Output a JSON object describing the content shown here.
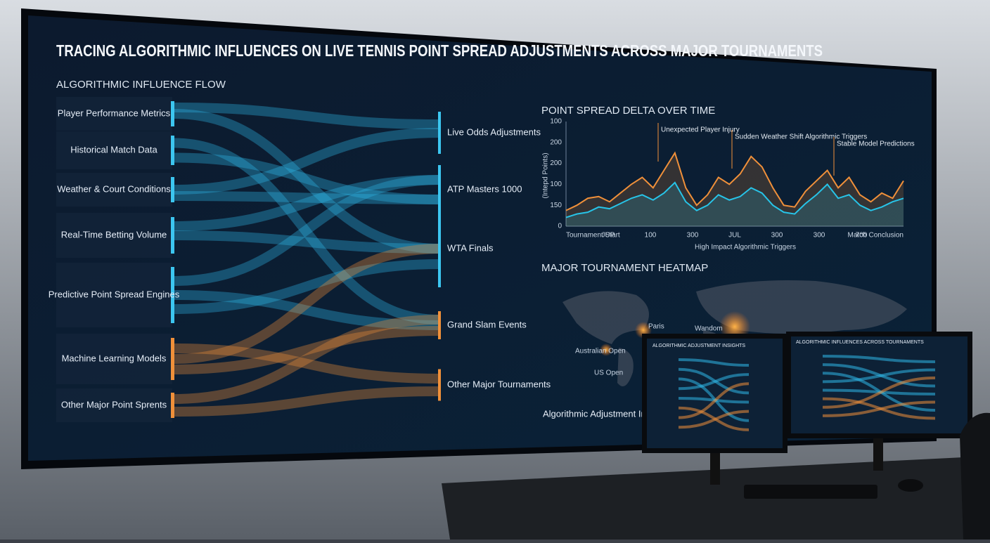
{
  "header": {
    "title": "TRACING ALGORITHMIC INFLUENCES ON LIVE TENNIS POINT SPREAD ADJUSTMENTS ACROSS MAJOR TOURNAMENTS"
  },
  "flow": {
    "title": "ALGORITHMIC INFLUENCE FLOW",
    "sources": [
      "Player Performance Metrics",
      "Historical Match Data",
      "Weather & Court Conditions",
      "Real-Time Betting Volume",
      "Predictive Point Spread Engines",
      "Machine Learning Models",
      "Other Major Point Sprents"
    ],
    "targets": [
      "Live Odds Adjustments",
      "ATP Masters 1000",
      "WTA Finals",
      "Grand Slam Events",
      "Other Major Tournaments"
    ]
  },
  "chart_data": {
    "type": "line",
    "title": "POINT SPREAD DELTA OVER TIME",
    "y_label": "(Intepd Points)",
    "y_axis_labels": [
      "100",
      "200",
      "200",
      "100",
      "150",
      "0"
    ],
    "x_axis_labels": [
      "Tournament Start",
      "JUP",
      "100",
      "300",
      "JUL",
      "300",
      "300",
      "700",
      "Match Conclusion"
    ],
    "x_label": "High Impact Algorithmic Triggers",
    "ylim": [
      0,
      300
    ],
    "annotations": [
      "Unexpected Player Injury",
      "Sudden Weather Shift Algorithmic Triggers",
      "Stable Model Predictions"
    ],
    "series": [
      {
        "color": "#f0903a",
        "values": [
          45,
          60,
          80,
          85,
          70,
          95,
          120,
          140,
          110,
          160,
          210,
          110,
          60,
          90,
          140,
          120,
          150,
          200,
          170,
          110,
          60,
          55,
          100,
          130,
          160,
          110,
          140,
          90,
          70,
          95,
          80,
          130
        ]
      },
      {
        "color": "#27c4e8",
        "values": [
          25,
          35,
          40,
          55,
          50,
          65,
          80,
          90,
          75,
          95,
          125,
          70,
          45,
          60,
          90,
          75,
          85,
          110,
          95,
          60,
          40,
          35,
          65,
          90,
          120,
          80,
          90,
          60,
          45,
          55,
          70,
          80
        ]
      }
    ]
  },
  "map": {
    "title": "MAJOR TOURNAMENT HEATMAP",
    "labels": [
      "Australian Open",
      "Paris",
      "Wandom",
      "US Open"
    ],
    "legend": "Algorithmic Adjustment Intensity"
  },
  "monitors": [
    "ALGORITHMIC ADJUSTMENT INSIGHTS",
    "ALGORITHMIC INFLUENCES ACROSS TOURNAMENTS"
  ]
}
